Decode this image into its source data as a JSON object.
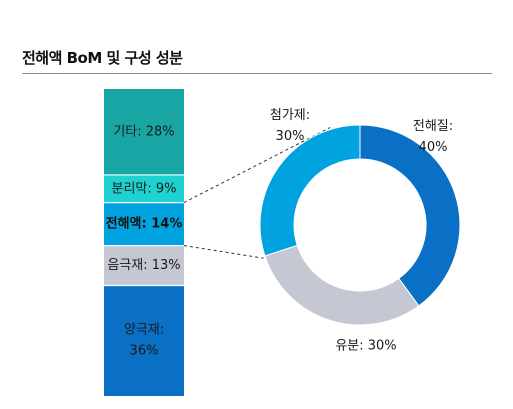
{
  "title": "전해액 BoM 및 구성 성분",
  "chart_data": [
    {
      "type": "bar",
      "stacked": true,
      "segments": [
        {
          "label": "기타",
          "value": 28,
          "display": "기타: 28%",
          "color": "#1aa5a5",
          "bold": false,
          "text_color": "#1a1a1a"
        },
        {
          "label": "분리막",
          "value": 9,
          "display": "분리막: 9%",
          "color": "#1ed2d2",
          "bold": false,
          "text_color": "#1a1a1a"
        },
        {
          "label": "전해액",
          "value": 14,
          "display": "전해액: 14%",
          "color": "#00a3e0",
          "bold": true,
          "text_color": "#111111"
        },
        {
          "label": "음극재",
          "value": 13,
          "display": "음극재: 13%",
          "color": "#c5c7d2",
          "bold": false,
          "text_color": "#1a1a1a"
        },
        {
          "label": "양극재",
          "value": 36,
          "display": [
            "양극재:",
            "36%"
          ],
          "color": "#0a70c6",
          "bold": false,
          "text_color": "#1a1a1a"
        }
      ]
    },
    {
      "type": "pie",
      "donut": true,
      "slices": [
        {
          "label": "전해질",
          "value": 40,
          "display": [
            "전해질:",
            "40%"
          ],
          "color": "#0a70c6"
        },
        {
          "label": "유분",
          "value": 30,
          "display": "유분: 30%",
          "color": "#c5c7d2"
        },
        {
          "label": "첨가제",
          "value": 30,
          "display": [
            "첨가제:",
            "30%"
          ],
          "color": "#00a3e0"
        }
      ]
    }
  ]
}
